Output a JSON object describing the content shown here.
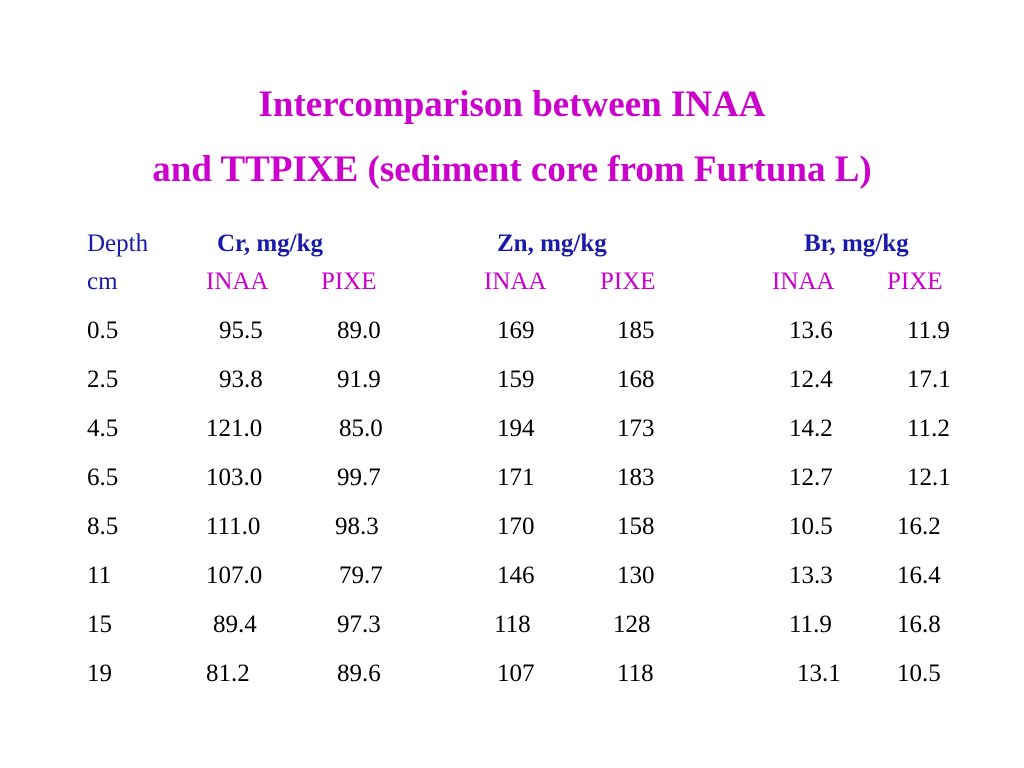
{
  "title_line1": "Intercomparison between INAA",
  "title_line2": "and TTPIXE (sediment core from Furtuna L)",
  "header": {
    "depth_label": "Depth",
    "depth_unit": "cm",
    "elements": [
      "Cr, mg/kg",
      "Zn, mg/kg",
      "Br, mg/kg"
    ],
    "methods": [
      "INAA",
      "PIXE",
      "INAA",
      "PIXE",
      "INAA",
      "PIXE"
    ]
  },
  "rows": [
    [
      "0.5",
      "95.5",
      "89.0",
      "169",
      "185",
      "13.6",
      "11.9"
    ],
    [
      "2.5",
      "93.8",
      "91.9",
      "159",
      "168",
      "12.4",
      "17.1"
    ],
    [
      "4.5",
      "121.0",
      "85.0",
      "194",
      "173",
      "14.2",
      "11.2"
    ],
    [
      "6.5",
      "103.0",
      "99.7",
      "171",
      "183",
      "12.7",
      "12.1"
    ],
    [
      "8.5",
      "111.0",
      "98.3",
      "170",
      "158",
      "10.5",
      "16.2"
    ],
    [
      "11",
      "107.0",
      "79.7",
      "146",
      "130",
      "13.3",
      "16.4"
    ],
    [
      "15",
      "89.4",
      "97.3",
      "118",
      "128",
      "11.9",
      "16.8"
    ],
    [
      "19",
      "81.2",
      "89.6",
      "107",
      "118",
      "13.1",
      "10.5"
    ]
  ],
  "colors": {
    "title": "#cc00cc",
    "header_blue": "#1a1aaa",
    "subheader_magenta": "#cc00cc",
    "body_text": "#000000"
  }
}
